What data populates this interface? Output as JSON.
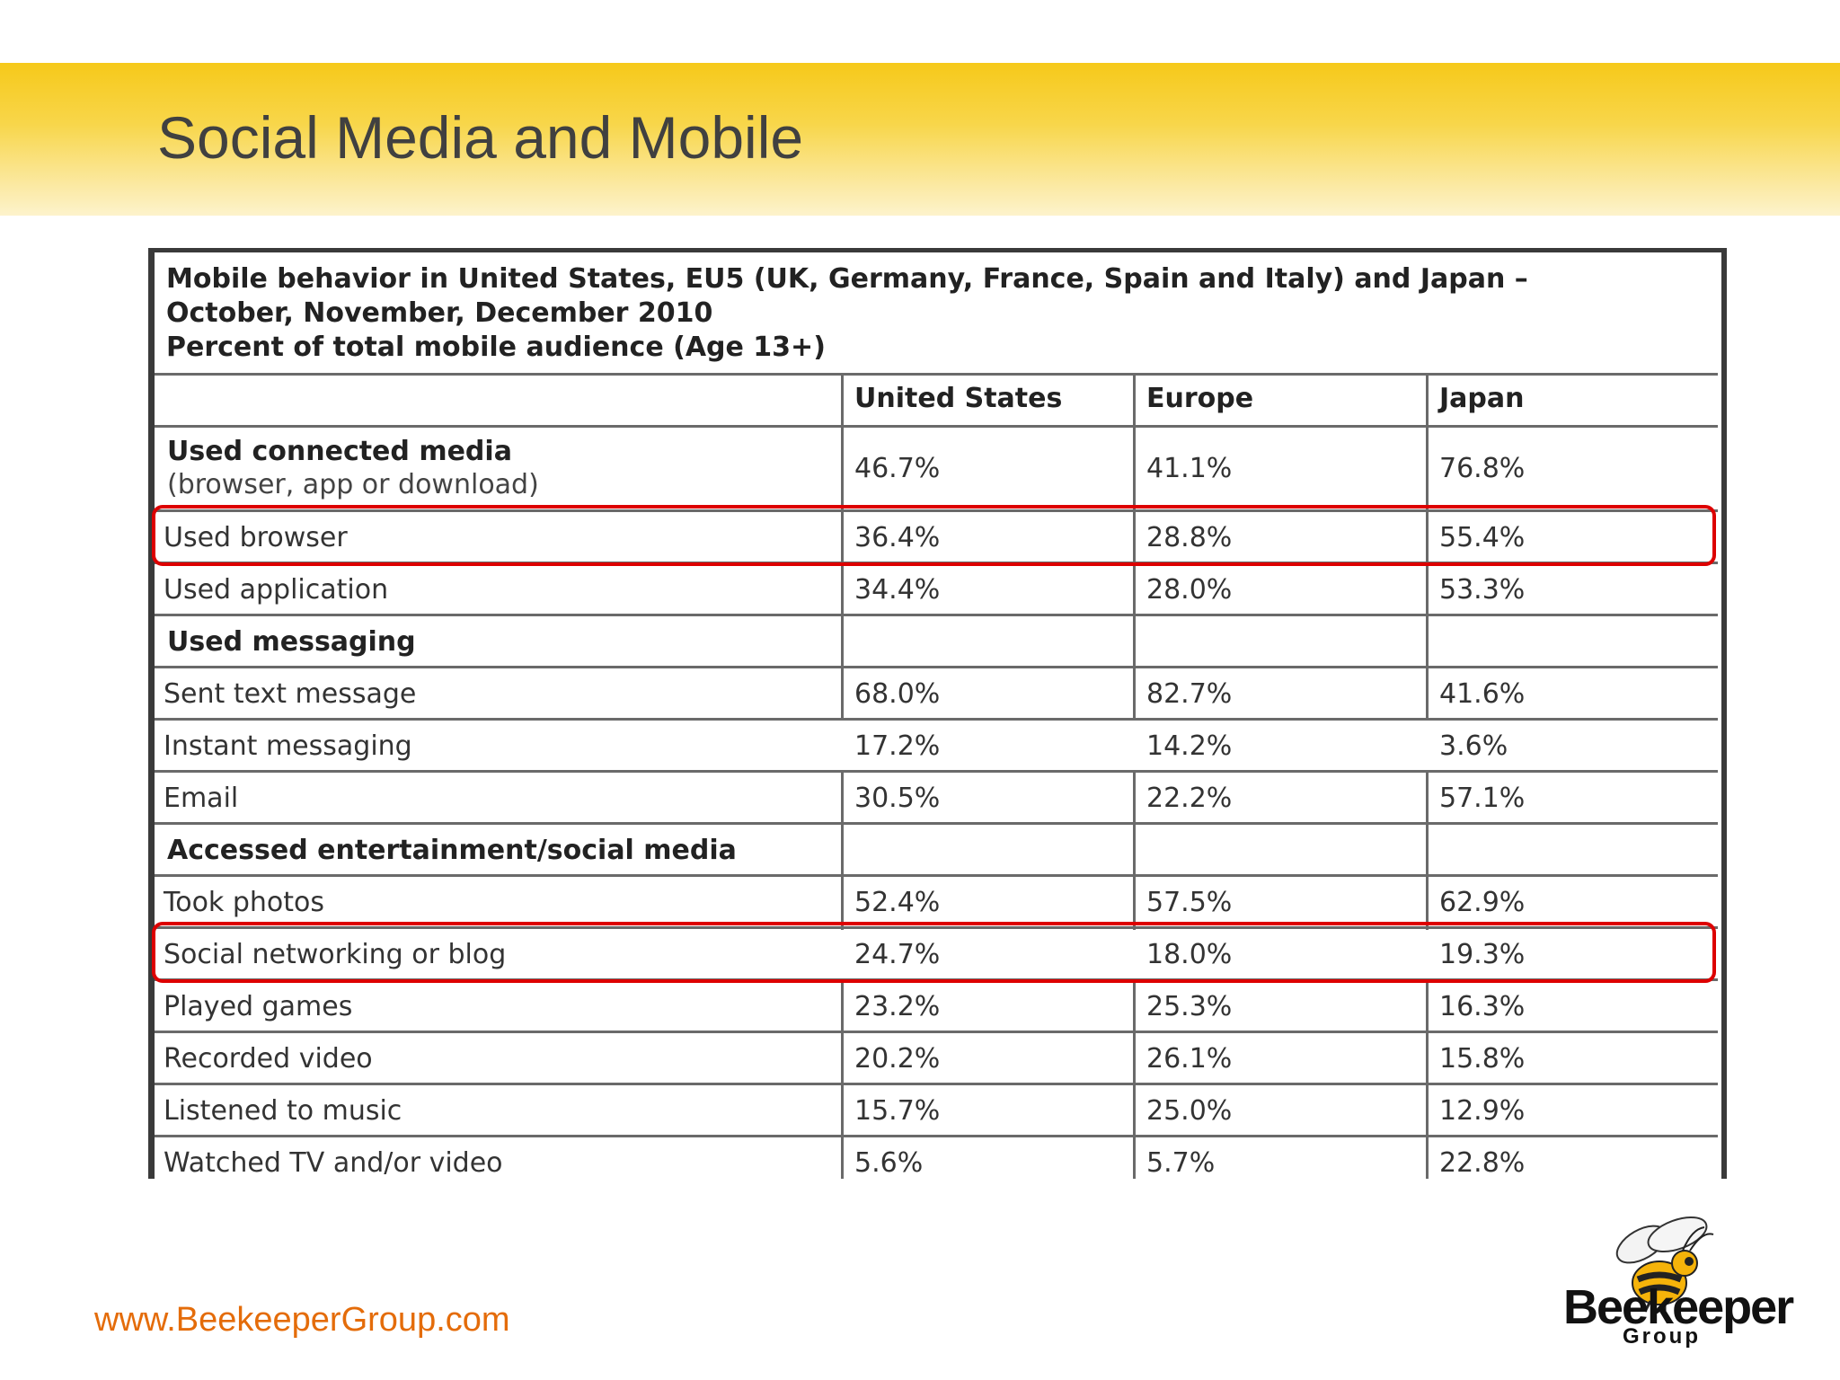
{
  "slide": {
    "title": "Social Media and Mobile",
    "footer_url": "www.BeekeeperGroup.com"
  },
  "table": {
    "caption": [
      "Mobile behavior in United States, EU5 (UK, Germany, France, Spain and Italy) and Japan –",
      "October, November, December 2010",
      "Percent of total mobile audience (Age 13+)"
    ],
    "columns": [
      "United States",
      "Europe",
      "Japan"
    ],
    "section_main": {
      "label": "Used connected media",
      "sublabel": "(browser, app or download)",
      "values": [
        "46.7%",
        "41.1%",
        "76.8%"
      ]
    },
    "rows_a": [
      {
        "label": "Used browser",
        "values": [
          "36.4%",
          "28.8%",
          "55.4%"
        ]
      },
      {
        "label": "Used application",
        "values": [
          "34.4%",
          "28.0%",
          "53.3%"
        ]
      }
    ],
    "section_messaging": "Used messaging",
    "rows_b": [
      {
        "label": "Sent text message",
        "values": [
          "68.0%",
          "82.7%",
          "41.6%"
        ]
      },
      {
        "label": "Instant messaging",
        "values": [
          "17.2%",
          "14.2%",
          "3.6%"
        ]
      },
      {
        "label": "Email",
        "values": [
          "30.5%",
          "22.2%",
          "57.1%"
        ]
      }
    ],
    "section_entertainment": "Accessed entertainment/social media",
    "rows_c": [
      {
        "label": "Took photos",
        "values": [
          "52.4%",
          "57.5%",
          "62.9%"
        ]
      },
      {
        "label": "Social networking or blog",
        "values": [
          "24.7%",
          "18.0%",
          "19.3%"
        ]
      },
      {
        "label": "Played games",
        "values": [
          "23.2%",
          "25.3%",
          "16.3%"
        ]
      },
      {
        "label": "Recorded video",
        "values": [
          "20.2%",
          "26.1%",
          "15.8%"
        ]
      },
      {
        "label": "Listened to music",
        "values": [
          "15.7%",
          "25.0%",
          "12.9%"
        ]
      },
      {
        "label": "Watched TV and/or video",
        "values": [
          "5.6%",
          "5.7%",
          "22.8%"
        ]
      }
    ],
    "highlight_color": "#dd0000"
  },
  "logo": {
    "name": "Beekeeper",
    "sub": "Group",
    "icon": "bee-icon"
  }
}
